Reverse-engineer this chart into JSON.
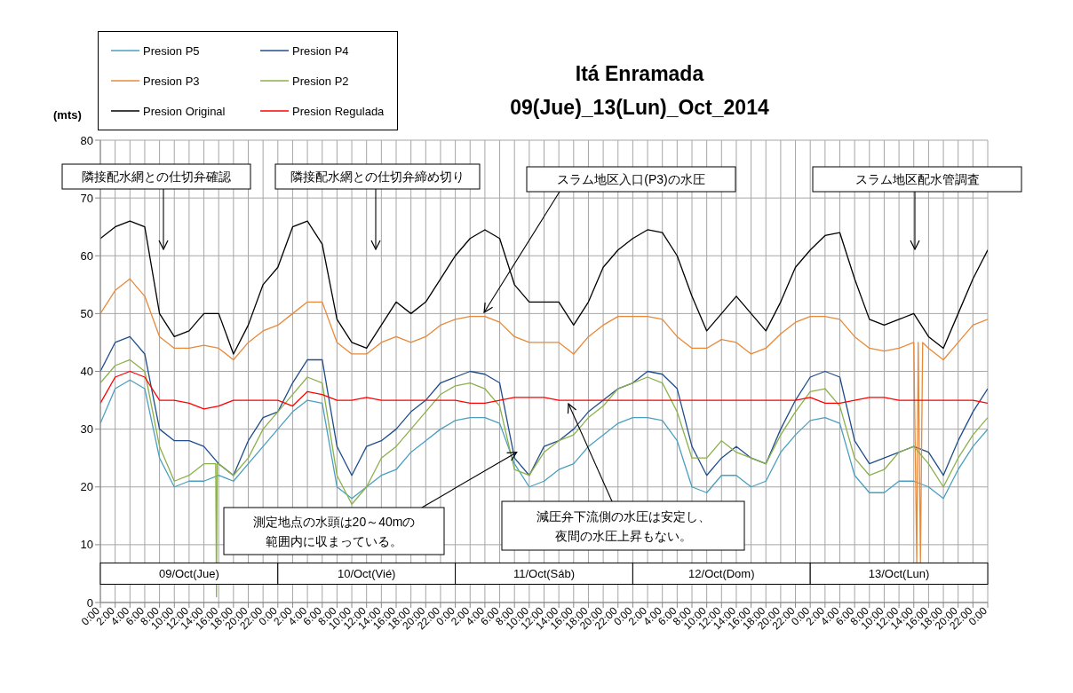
{
  "chart_data": {
    "type": "line",
    "title": "Itá Enramada",
    "subtitle": "09(Jue)_13(Lun)_Oct_2014",
    "ylabel": "(mts)",
    "x": [
      "2014-10-09T00:00",
      "2014-10-09T02:00",
      "2014-10-09T04:00",
      "2014-10-09T06:00",
      "2014-10-09T08:00",
      "2014-10-09T10:00",
      "2014-10-09T12:00",
      "2014-10-09T14:00",
      "2014-10-09T16:00",
      "2014-10-09T18:00",
      "2014-10-09T20:00",
      "2014-10-09T22:00",
      "2014-10-10T00:00",
      "2014-10-10T02:00",
      "2014-10-10T04:00",
      "2014-10-10T06:00",
      "2014-10-10T08:00",
      "2014-10-10T10:00",
      "2014-10-10T12:00",
      "2014-10-10T14:00",
      "2014-10-10T16:00",
      "2014-10-10T18:00",
      "2014-10-10T20:00",
      "2014-10-10T22:00",
      "2014-10-11T00:00",
      "2014-10-11T02:00",
      "2014-10-11T04:00",
      "2014-10-11T06:00",
      "2014-10-11T08:00",
      "2014-10-11T10:00",
      "2014-10-11T12:00",
      "2014-10-11T14:00",
      "2014-10-11T16:00",
      "2014-10-11T18:00",
      "2014-10-11T20:00",
      "2014-10-11T22:00",
      "2014-10-12T00:00",
      "2014-10-12T02:00",
      "2014-10-12T04:00",
      "2014-10-12T06:00",
      "2014-10-12T08:00",
      "2014-10-12T10:00",
      "2014-10-12T12:00",
      "2014-10-12T14:00",
      "2014-10-12T16:00",
      "2014-10-12T18:00",
      "2014-10-12T20:00",
      "2014-10-12T22:00",
      "2014-10-13T00:00",
      "2014-10-13T02:00",
      "2014-10-13T04:00",
      "2014-10-13T06:00",
      "2014-10-13T08:00",
      "2014-10-13T10:00",
      "2014-10-13T12:00",
      "2014-10-13T14:00",
      "2014-10-13T16:00",
      "2014-10-13T18:00",
      "2014-10-13T20:00",
      "2014-10-13T22:00",
      "2014-10-14T00:00"
    ],
    "series": [
      {
        "name": "Presion P5",
        "color": "#4a9fc0",
        "values": [
          31,
          37,
          38.5,
          37,
          25,
          20,
          21,
          21,
          22,
          21,
          24,
          27,
          30,
          33,
          35,
          34.5,
          20,
          18,
          20,
          22,
          23,
          26,
          28,
          30,
          31.5,
          32,
          32,
          31,
          24,
          20,
          21,
          23,
          24,
          27,
          29,
          31,
          32,
          32,
          31.5,
          28,
          20,
          19,
          22,
          22,
          20,
          21,
          26,
          29,
          31.5,
          32,
          31,
          22,
          19,
          19,
          21,
          21,
          20,
          18,
          23,
          27,
          30
        ]
      },
      {
        "name": "Presion P4",
        "color": "#1f4e8c",
        "values": [
          40,
          45,
          46,
          43,
          30,
          28,
          28,
          27,
          24,
          22,
          28,
          32,
          33,
          38,
          42,
          42,
          27,
          22,
          27,
          28,
          30,
          33,
          35,
          38,
          39,
          40,
          39.5,
          38,
          25,
          22,
          27,
          28,
          30,
          33,
          35,
          37,
          38,
          40,
          39.5,
          37,
          27,
          22,
          25,
          27,
          25,
          24,
          30,
          35,
          39,
          40,
          39,
          28,
          24,
          25,
          26,
          27,
          26,
          22,
          28,
          33,
          37
        ]
      },
      {
        "name": "Presion P3",
        "color": "#e8893a",
        "x": [
          "2014-10-09T00:00",
          "2014-10-09T02:00",
          "2014-10-09T04:00",
          "2014-10-09T06:00",
          "2014-10-09T08:00",
          "2014-10-09T10:00",
          "2014-10-09T12:00",
          "2014-10-09T14:00",
          "2014-10-09T16:00",
          "2014-10-09T18:00",
          "2014-10-09T20:00",
          "2014-10-09T22:00",
          "2014-10-10T00:00",
          "2014-10-10T02:00",
          "2014-10-10T04:00",
          "2014-10-10T06:00",
          "2014-10-10T08:00",
          "2014-10-10T10:00",
          "2014-10-10T12:00",
          "2014-10-10T14:00",
          "2014-10-10T16:00",
          "2014-10-10T18:00",
          "2014-10-10T20:00",
          "2014-10-10T22:00",
          "2014-10-11T00:00",
          "2014-10-11T02:00",
          "2014-10-11T04:00",
          "2014-10-11T06:00",
          "2014-10-11T08:00",
          "2014-10-11T10:00",
          "2014-10-11T12:00",
          "2014-10-11T14:00",
          "2014-10-11T16:00",
          "2014-10-11T18:00",
          "2014-10-11T20:00",
          "2014-10-11T22:00",
          "2014-10-12T00:00",
          "2014-10-12T02:00",
          "2014-10-12T04:00",
          "2014-10-12T06:00",
          "2014-10-12T08:00",
          "2014-10-12T10:00",
          "2014-10-12T12:00",
          "2014-10-12T14:00",
          "2014-10-12T16:00",
          "2014-10-12T18:00",
          "2014-10-12T20:00",
          "2014-10-12T22:00",
          "2014-10-13T00:00",
          "2014-10-13T02:00",
          "2014-10-13T04:00",
          "2014-10-13T06:00",
          "2014-10-13T08:00",
          "2014-10-13T10:00",
          "2014-10-13T12:00",
          "2014-10-13T14:00",
          "2014-10-13T14:24",
          "2014-10-13T14:36",
          "2014-10-13T14:54",
          "2014-10-13T15:12",
          "2014-10-13T16:00",
          "2014-10-13T18:00",
          "2014-10-13T20:00",
          "2014-10-13T22:00",
          "2014-10-14T00:00"
        ],
        "values": [
          50,
          54,
          56,
          53,
          46,
          44,
          44,
          44.5,
          44,
          42,
          45,
          47,
          48,
          50,
          52,
          52,
          45,
          43,
          43,
          45,
          46,
          45,
          46,
          48,
          49,
          49.5,
          49.5,
          48.5,
          46,
          45,
          45,
          45,
          43,
          46,
          48,
          49.5,
          49.5,
          49.5,
          49,
          46,
          44,
          44,
          45.5,
          45,
          43,
          44,
          46.5,
          48.5,
          49.5,
          49.5,
          49,
          46,
          44,
          43.5,
          44,
          45,
          7,
          45,
          7,
          45,
          44,
          42,
          45,
          48,
          49
        ]
      },
      {
        "name": "Presion P2",
        "color": "#8cb04a",
        "x": [
          "2014-10-09T00:00",
          "2014-10-09T02:00",
          "2014-10-09T04:00",
          "2014-10-09T06:00",
          "2014-10-09T08:00",
          "2014-10-09T10:00",
          "2014-10-09T12:00",
          "2014-10-09T14:00",
          "2014-10-09T15:36",
          "2014-10-09T15:42",
          "2014-10-09T15:48",
          "2014-10-09T16:00",
          "2014-10-09T18:00",
          "2014-10-09T20:00",
          "2014-10-09T22:00",
          "2014-10-10T00:00",
          "2014-10-10T02:00",
          "2014-10-10T04:00",
          "2014-10-10T06:00",
          "2014-10-10T08:00",
          "2014-10-10T10:00",
          "2014-10-10T12:00",
          "2014-10-10T14:00",
          "2014-10-10T16:00",
          "2014-10-10T18:00",
          "2014-10-10T20:00",
          "2014-10-10T22:00",
          "2014-10-11T00:00",
          "2014-10-11T02:00",
          "2014-10-11T04:00",
          "2014-10-11T06:00",
          "2014-10-11T08:00",
          "2014-10-11T10:00",
          "2014-10-11T12:00",
          "2014-10-11T14:00",
          "2014-10-11T16:00",
          "2014-10-11T18:00",
          "2014-10-11T20:00",
          "2014-10-11T22:00",
          "2014-10-12T00:00",
          "2014-10-12T02:00",
          "2014-10-12T04:00",
          "2014-10-12T06:00",
          "2014-10-12T08:00",
          "2014-10-12T10:00",
          "2014-10-12T12:00",
          "2014-10-12T14:00",
          "2014-10-12T16:00",
          "2014-10-12T18:00",
          "2014-10-12T20:00",
          "2014-10-12T22:00",
          "2014-10-13T00:00",
          "2014-10-13T02:00",
          "2014-10-13T04:00",
          "2014-10-13T06:00",
          "2014-10-13T08:00",
          "2014-10-13T10:00",
          "2014-10-13T12:00",
          "2014-10-13T14:00",
          "2014-10-13T16:00",
          "2014-10-13T18:00",
          "2014-10-13T20:00",
          "2014-10-13T22:00",
          "2014-10-14T00:00"
        ],
        "values": [
          38,
          41,
          42,
          40,
          27,
          21,
          22,
          24,
          24,
          1,
          24,
          24,
          22,
          25,
          30,
          33,
          36,
          39,
          38,
          22,
          17,
          20,
          25,
          27,
          30,
          33,
          36,
          37.5,
          38,
          37,
          34,
          23,
          22,
          26,
          28,
          29,
          32,
          34,
          37,
          38,
          39,
          38,
          33,
          25,
          25,
          28,
          26,
          25,
          24,
          29,
          33,
          36.5,
          37,
          34,
          25,
          22,
          23,
          26,
          27,
          24,
          20,
          25,
          29,
          32
        ]
      },
      {
        "name": "Presion Original",
        "color": "#000000",
        "values": [
          63,
          65,
          66,
          65,
          50,
          46,
          47,
          50,
          50,
          43,
          48,
          55,
          58,
          65,
          66,
          62,
          49,
          45,
          44,
          48,
          52,
          50,
          52,
          56,
          60,
          63,
          64.5,
          63,
          55,
          52,
          52,
          52,
          48,
          52,
          58,
          61,
          63,
          64.5,
          64,
          60,
          53,
          47,
          50,
          53,
          50,
          47,
          52,
          58,
          61,
          63.5,
          64,
          56,
          49,
          48,
          49,
          50,
          46,
          44,
          50,
          56,
          61
        ]
      },
      {
        "name": "Presion Regulada",
        "color": "#ff0000",
        "values": [
          34.5,
          39,
          40,
          39,
          35,
          35,
          34.5,
          33.5,
          34,
          35,
          35,
          35,
          35,
          34,
          36.5,
          36,
          35,
          35,
          35.5,
          35,
          35,
          35,
          35,
          35,
          35,
          34.5,
          34.5,
          35,
          35.5,
          35.5,
          35.5,
          35,
          35,
          35,
          35,
          35,
          35,
          35,
          35,
          35,
          35,
          35,
          35,
          35,
          35,
          35,
          35,
          35,
          35.5,
          34.5,
          34.5,
          35,
          35.5,
          35.5,
          35,
          35,
          35,
          35,
          35,
          35,
          34.5
        ]
      }
    ],
    "xlim": [
      "2014-10-09T00:00",
      "2014-10-14T00:00"
    ],
    "xticks": [
      {
        "value": "2014-10-09T00:00",
        "label": "0:00"
      },
      {
        "value": "2014-10-09T02:00",
        "label": "2:00"
      },
      {
        "value": "2014-10-09T04:00",
        "label": "4:00"
      },
      {
        "value": "2014-10-09T06:00",
        "label": "6:00"
      },
      {
        "value": "2014-10-09T08:00",
        "label": "8:00"
      },
      {
        "value": "2014-10-09T10:00",
        "label": "10:00"
      },
      {
        "value": "2014-10-09T12:00",
        "label": "12:00"
      },
      {
        "value": "2014-10-09T14:00",
        "label": "14:00"
      },
      {
        "value": "2014-10-09T16:00",
        "label": "16:00"
      },
      {
        "value": "2014-10-09T18:00",
        "label": "18:00"
      },
      {
        "value": "2014-10-09T20:00",
        "label": "20:00"
      },
      {
        "value": "2014-10-09T22:00",
        "label": "22:00"
      },
      {
        "value": "2014-10-10T00:00",
        "label": "0:00"
      },
      {
        "value": "2014-10-10T02:00",
        "label": "2:00"
      },
      {
        "value": "2014-10-10T04:00",
        "label": "4:00"
      },
      {
        "value": "2014-10-10T06:00",
        "label": "6:00"
      },
      {
        "value": "2014-10-10T08:00",
        "label": "8:00"
      },
      {
        "value": "2014-10-10T10:00",
        "label": "10:00"
      },
      {
        "value": "2014-10-10T12:00",
        "label": "12:00"
      },
      {
        "value": "2014-10-10T14:00",
        "label": "14:00"
      },
      {
        "value": "2014-10-10T16:00",
        "label": "16:00"
      },
      {
        "value": "2014-10-10T18:00",
        "label": "18:00"
      },
      {
        "value": "2014-10-10T20:00",
        "label": "20:00"
      },
      {
        "value": "2014-10-10T22:00",
        "label": "22:00"
      },
      {
        "value": "2014-10-11T00:00",
        "label": "0:00"
      },
      {
        "value": "2014-10-11T02:00",
        "label": "2:00"
      },
      {
        "value": "2014-10-11T04:00",
        "label": "4:00"
      },
      {
        "value": "2014-10-11T06:00",
        "label": "6:00"
      },
      {
        "value": "2014-10-11T08:00",
        "label": "8:00"
      },
      {
        "value": "2014-10-11T10:00",
        "label": "10:00"
      },
      {
        "value": "2014-10-11T12:00",
        "label": "12:00"
      },
      {
        "value": "2014-10-11T14:00",
        "label": "14:00"
      },
      {
        "value": "2014-10-11T16:00",
        "label": "16:00"
      },
      {
        "value": "2014-10-11T18:00",
        "label": "18:00"
      },
      {
        "value": "2014-10-11T20:00",
        "label": "20:00"
      },
      {
        "value": "2014-10-11T22:00",
        "label": "22:00"
      },
      {
        "value": "2014-10-12T00:00",
        "label": "0:00"
      },
      {
        "value": "2014-10-12T02:00",
        "label": "2:00"
      },
      {
        "value": "2014-10-12T04:00",
        "label": "4:00"
      },
      {
        "value": "2014-10-12T06:00",
        "label": "6:00"
      },
      {
        "value": "2014-10-12T08:00",
        "label": "8:00"
      },
      {
        "value": "2014-10-12T10:00",
        "label": "10:00"
      },
      {
        "value": "2014-10-12T12:00",
        "label": "12:00"
      },
      {
        "value": "2014-10-12T14:00",
        "label": "14:00"
      },
      {
        "value": "2014-10-12T16:00",
        "label": "16:00"
      },
      {
        "value": "2014-10-12T18:00",
        "label": "18:00"
      },
      {
        "value": "2014-10-12T20:00",
        "label": "20:00"
      },
      {
        "value": "2014-10-12T22:00",
        "label": "22:00"
      },
      {
        "value": "2014-10-13T00:00",
        "label": "0:00"
      },
      {
        "value": "2014-10-13T02:00",
        "label": "2:00"
      },
      {
        "value": "2014-10-13T04:00",
        "label": "4:00"
      },
      {
        "value": "2014-10-13T06:00",
        "label": "6:00"
      },
      {
        "value": "2014-10-13T08:00",
        "label": "8:00"
      },
      {
        "value": "2014-10-13T10:00",
        "label": "10:00"
      },
      {
        "value": "2014-10-13T12:00",
        "label": "12:00"
      },
      {
        "value": "2014-10-13T14:00",
        "label": "14:00"
      },
      {
        "value": "2014-10-13T16:00",
        "label": "16:00"
      },
      {
        "value": "2014-10-13T18:00",
        "label": "18:00"
      },
      {
        "value": "2014-10-13T20:00",
        "label": "20:00"
      },
      {
        "value": "2014-10-13T22:00",
        "label": "22:00"
      },
      {
        "value": "2014-10-14T00:00",
        "label": "0:00"
      }
    ],
    "ylim": [
      0,
      80
    ],
    "yticks": [
      0,
      10,
      20,
      30,
      40,
      50,
      60,
      70,
      80
    ],
    "grid": true,
    "legend": "top left",
    "marker": "none",
    "line_style": "solid",
    "annotations": [
      "隣接配水網との仕切弁確認",
      "隣接配水網との仕切弁締め切り",
      {
        "text": "スラム地区入口(P3)の水圧",
        "x": "2014-10-11T03:54",
        "y": 50.2
      },
      "スラム地区配水管調査",
      {
        "text": "測定地点の水頭は20～40mの範囲内に収まっている。",
        "x": "2014-10-11T08:18",
        "y": 26
      },
      {
        "text": "減圧弁下流側の水圧は安定し、夜間の水圧上昇もない。",
        "x": "2014-10-11T15:18",
        "y": 34.4
      },
      "09/Oct(Jue)",
      "10/Oct(Vié)",
      "11/Oct(Sáb)",
      "12/Oct(Dom)",
      "13/Oct(Lun)"
    ]
  }
}
